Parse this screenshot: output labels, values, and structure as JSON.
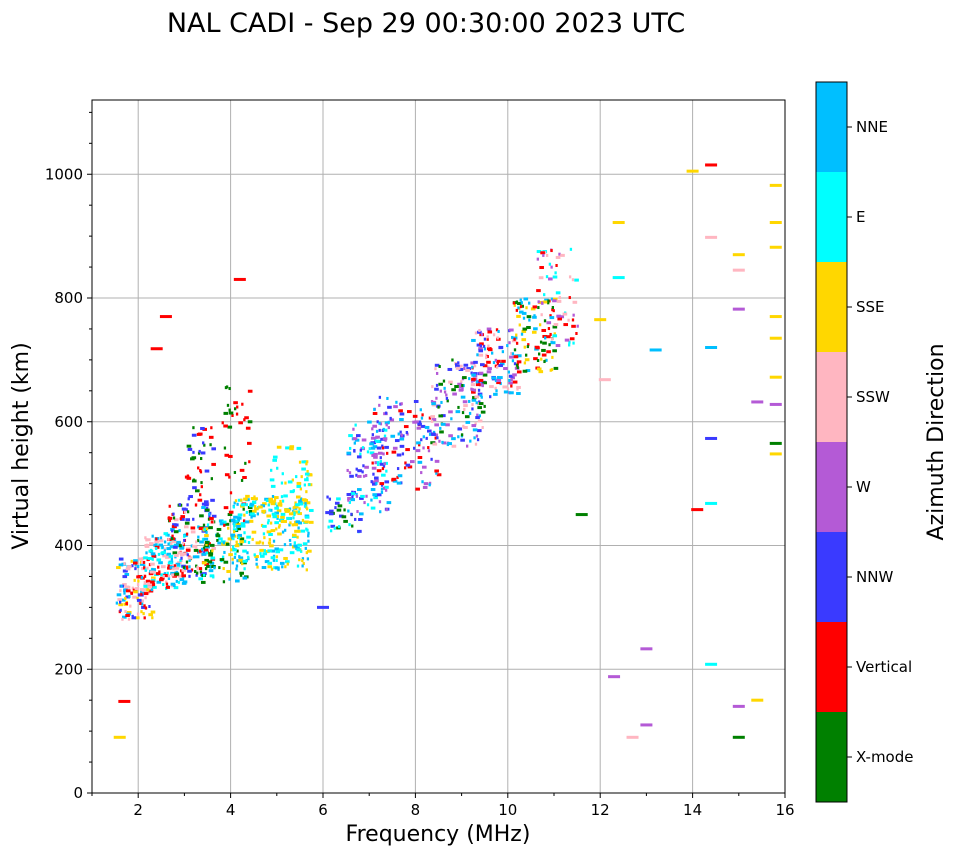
{
  "chart_data": {
    "type": "scatter",
    "title": "NAL CADI - Sep 29 00:30:00 2023 UTC",
    "xlabel": "Frequency (MHz)",
    "ylabel": "Virtual height (km)",
    "xlim": [
      1,
      16
    ],
    "ylim": [
      0,
      1120
    ],
    "xticks": [
      2,
      4,
      6,
      8,
      10,
      12,
      14,
      16
    ],
    "yticks": [
      0,
      200,
      400,
      600,
      800,
      1000
    ],
    "grid": true,
    "colorbar": {
      "label": "Azimuth Direction",
      "categories": [
        {
          "name": "X-mode",
          "color": "#008000"
        },
        {
          "name": "Vertical",
          "color": "#ff0000"
        },
        {
          "name": "NNW",
          "color": "#3a3aff"
        },
        {
          "name": "W",
          "color": "#b45ad6"
        },
        {
          "name": "SSW",
          "color": "#ffb6c1"
        },
        {
          "name": "SSE",
          "color": "#ffd700"
        },
        {
          "name": "E",
          "color": "#00ffff"
        },
        {
          "name": "NNE",
          "color": "#00bfff"
        }
      ]
    },
    "clusters": [
      {
        "x": [
          1.5,
          2.3
        ],
        "y": [
          280,
          380
        ],
        "n": 120,
        "mix": [
          "Vertical",
          "NNE",
          "SSE",
          "SSW",
          "NNW"
        ]
      },
      {
        "x": [
          2.1,
          3.0
        ],
        "y": [
          330,
          420
        ],
        "n": 160,
        "mix": [
          "SSW",
          "Vertical",
          "NNE",
          "E"
        ]
      },
      {
        "x": [
          2.6,
          3.6
        ],
        "y": [
          350,
          470
        ],
        "n": 140,
        "mix": [
          "Vertical",
          "SSW",
          "NNE",
          "NNW",
          "X-mode"
        ]
      },
      {
        "x": [
          3.0,
          3.6
        ],
        "y": [
          420,
          600
        ],
        "n": 50,
        "mix": [
          "Vertical",
          "X-mode",
          "NNW"
        ]
      },
      {
        "x": [
          3.3,
          4.3
        ],
        "y": [
          340,
          440
        ],
        "n": 90,
        "mix": [
          "X-mode",
          "SSE",
          "E",
          "NNE"
        ]
      },
      {
        "x": [
          3.8,
          4.4
        ],
        "y": [
          430,
          660
        ],
        "n": 45,
        "mix": [
          "X-mode",
          "Vertical"
        ]
      },
      {
        "x": [
          4.0,
          5.7
        ],
        "y": [
          360,
          480
        ],
        "n": 240,
        "mix": [
          "E",
          "SSE",
          "NNE"
        ]
      },
      {
        "x": [
          4.8,
          5.7
        ],
        "y": [
          430,
          560
        ],
        "n": 70,
        "mix": [
          "E",
          "SSE"
        ]
      },
      {
        "x": [
          6.0,
          6.8
        ],
        "y": [
          420,
          480
        ],
        "n": 30,
        "mix": [
          "NNW",
          "E",
          "X-mode"
        ]
      },
      {
        "x": [
          6.5,
          7.4
        ],
        "y": [
          450,
          600
        ],
        "n": 110,
        "mix": [
          "NNW",
          "NNE",
          "E",
          "W"
        ]
      },
      {
        "x": [
          7.0,
          8.5
        ],
        "y": [
          490,
          640
        ],
        "n": 130,
        "mix": [
          "NNW",
          "W",
          "Vertical",
          "NNE"
        ]
      },
      {
        "x": [
          8.3,
          9.5
        ],
        "y": [
          560,
          700
        ],
        "n": 130,
        "mix": [
          "NNW",
          "W",
          "NNE",
          "X-mode",
          "SSW"
        ]
      },
      {
        "x": [
          9.2,
          10.2
        ],
        "y": [
          640,
          750
        ],
        "n": 120,
        "mix": [
          "Vertical",
          "NNE",
          "NNW",
          "W",
          "SSW"
        ]
      },
      {
        "x": [
          10.1,
          11.0
        ],
        "y": [
          680,
          800
        ],
        "n": 100,
        "mix": [
          "X-mode",
          "Vertical",
          "NNE",
          "SSE"
        ]
      },
      {
        "x": [
          10.6,
          11.5
        ],
        "y": [
          720,
          880
        ],
        "n": 60,
        "mix": [
          "Vertical",
          "SSW",
          "W",
          "E"
        ]
      }
    ],
    "outliers": [
      {
        "x": 1.6,
        "y": 90,
        "color": "SSE"
      },
      {
        "x": 1.7,
        "y": 148,
        "color": "Vertical"
      },
      {
        "x": 6.0,
        "y": 300,
        "color": "NNW"
      },
      {
        "x": 11.6,
        "y": 450,
        "color": "X-mode"
      },
      {
        "x": 12.0,
        "y": 765,
        "color": "SSE"
      },
      {
        "x": 12.1,
        "y": 668,
        "color": "SSW"
      },
      {
        "x": 12.3,
        "y": 188,
        "color": "W"
      },
      {
        "x": 12.4,
        "y": 833,
        "color": "E"
      },
      {
        "x": 12.4,
        "y": 922,
        "color": "SSE"
      },
      {
        "x": 12.7,
        "y": 90,
        "color": "SSW"
      },
      {
        "x": 13.0,
        "y": 233,
        "color": "W"
      },
      {
        "x": 13.0,
        "y": 110,
        "color": "W"
      },
      {
        "x": 13.2,
        "y": 716,
        "color": "NNE"
      },
      {
        "x": 14.0,
        "y": 1005,
        "color": "SSE"
      },
      {
        "x": 14.1,
        "y": 458,
        "color": "Vertical"
      },
      {
        "x": 14.4,
        "y": 1015,
        "color": "Vertical"
      },
      {
        "x": 14.4,
        "y": 898,
        "color": "SSW"
      },
      {
        "x": 14.4,
        "y": 720,
        "color": "NNE"
      },
      {
        "x": 14.4,
        "y": 573,
        "color": "NNW"
      },
      {
        "x": 14.4,
        "y": 468,
        "color": "E"
      },
      {
        "x": 14.4,
        "y": 208,
        "color": "E"
      },
      {
        "x": 15.0,
        "y": 870,
        "color": "SSE"
      },
      {
        "x": 15.0,
        "y": 845,
        "color": "SSW"
      },
      {
        "x": 15.0,
        "y": 782,
        "color": "W"
      },
      {
        "x": 15.0,
        "y": 140,
        "color": "W"
      },
      {
        "x": 15.0,
        "y": 90,
        "color": "X-mode"
      },
      {
        "x": 15.4,
        "y": 150,
        "color": "SSE"
      },
      {
        "x": 15.4,
        "y": 632,
        "color": "W"
      },
      {
        "x": 15.8,
        "y": 982,
        "color": "SSE"
      },
      {
        "x": 15.8,
        "y": 922,
        "color": "SSE"
      },
      {
        "x": 15.8,
        "y": 882,
        "color": "SSE"
      },
      {
        "x": 15.8,
        "y": 770,
        "color": "SSE"
      },
      {
        "x": 15.8,
        "y": 735,
        "color": "SSE"
      },
      {
        "x": 15.8,
        "y": 672,
        "color": "SSE"
      },
      {
        "x": 15.8,
        "y": 628,
        "color": "W"
      },
      {
        "x": 15.8,
        "y": 565,
        "color": "X-mode"
      },
      {
        "x": 15.8,
        "y": 548,
        "color": "SSE"
      },
      {
        "x": 4.2,
        "y": 830,
        "color": "Vertical"
      },
      {
        "x": 2.6,
        "y": 770,
        "color": "Vertical"
      },
      {
        "x": 2.4,
        "y": 718,
        "color": "Vertical"
      }
    ]
  }
}
